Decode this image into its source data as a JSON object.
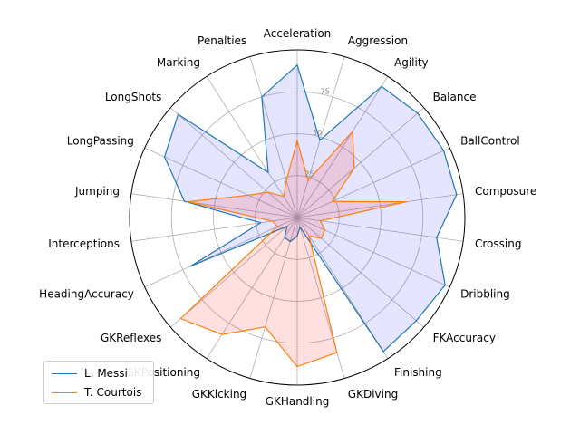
{
  "chart_data": {
    "type": "radar",
    "categories": [
      "Acceleration",
      "Aggression",
      "Agility",
      "Balance",
      "BallControl",
      "Composure",
      "Crossing",
      "Dribbling",
      "FKAccuracy",
      "Finishing",
      "GKDiving",
      "GKHandling",
      "GKKicking",
      "GKPositioning",
      "GKReflexes",
      "HeadingAccuracy",
      "Interceptions",
      "Jumping",
      "LongPassing",
      "LongShots",
      "Marking",
      "Penalties"
    ],
    "r_ticks": [
      "25",
      "50",
      "75"
    ],
    "r_tick_values": [
      25,
      50,
      75
    ],
    "rlim": [
      0,
      100
    ],
    "grid": true,
    "legend_position": "lower-left",
    "series": [
      {
        "name": "L. Messi",
        "color": "#1f77b4",
        "fill": "#0000ff",
        "fill_opacity": 0.1,
        "values": [
          91,
          48,
          93,
          95,
          96,
          96,
          84,
          97,
          94,
          95,
          6,
          11,
          15,
          14,
          8,
          70,
          22,
          68,
          87,
          94,
          32,
          75
        ]
      },
      {
        "name": "T. Courtois",
        "color": "#ff7f0e",
        "fill": "#ff0000",
        "fill_opacity": 0.12,
        "values": [
          46,
          23,
          61,
          45,
          23,
          66,
          14,
          18,
          19,
          13,
          84,
          89,
          68,
          83,
          92,
          13,
          15,
          66,
          32,
          23,
          15,
          23
        ]
      }
    ]
  }
}
